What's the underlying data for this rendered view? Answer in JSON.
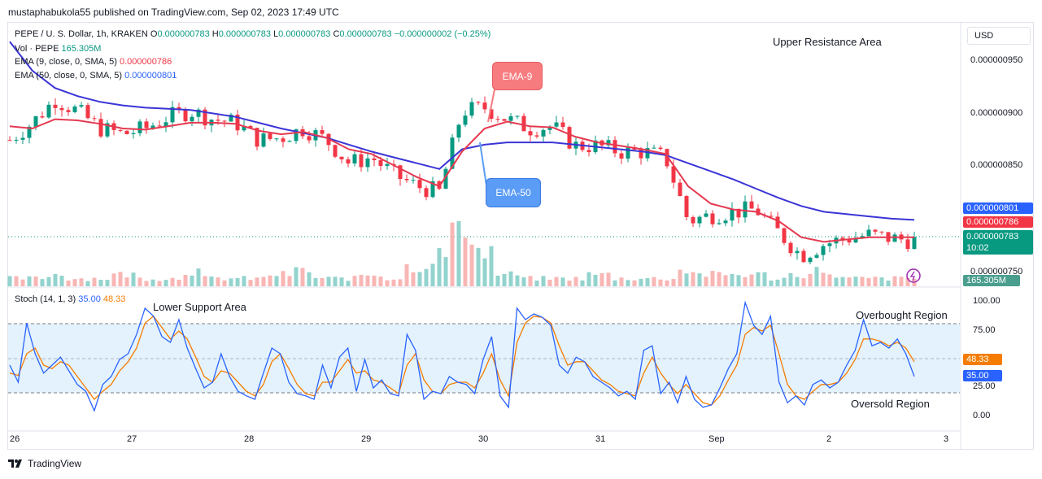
{
  "header": {
    "publisher": "mustaphabukola55 published on TradingView.com, Sep 02, 2023 17:49 UTC"
  },
  "usd_button": "USD",
  "legend": {
    "symbol": "PEPE / U. S. Dollar, 1h, KRAKEN",
    "o_label": "O",
    "o_value": "0.000000783",
    "h_label": "H",
    "h_value": "0.000000783",
    "l_label": "L",
    "l_value": "0.000000783",
    "c_label": "C",
    "c_value": "0.000000783",
    "change": "−0.000000002 (−0.25%)",
    "vol_label": "Vol · PEPE",
    "vol_value": "165.305M",
    "ema9_label": "EMA (9, close, 0, SMA, 5)",
    "ema9_value": "0.000000786",
    "ema50_label": "EMA (50, close, 0, SMA, 5)",
    "ema50_value": "0.000000801",
    "stoch_label": "Stoch (14, 1, 3)",
    "stoch_k": "35.00",
    "stoch_d": "48.33"
  },
  "annotations": {
    "upper_resistance": "Upper Resistance Area",
    "lower_support": "Lower Support Area",
    "overbought": "Overbought Region",
    "oversold": "Oversold Region",
    "ema9_callout": "EMA-9",
    "ema50_callout": "EMA-50"
  },
  "price_axis": [
    "0.000000950",
    "0.000000900",
    "0.000000850",
    "0.000000750"
  ],
  "price_tags": {
    "ema50": "0.000000801",
    "ema9": "0.000000786",
    "last": "0.000000783",
    "countdown": "10:02",
    "volume": "165.305M"
  },
  "stoch_axis": [
    "100.00",
    "75.00",
    "25.00",
    "0.00"
  ],
  "stoch_tags": {
    "d": "48.33",
    "k": "35.00"
  },
  "time_axis": [
    "26",
    "27",
    "28",
    "29",
    "30",
    "31",
    "Sep",
    "2",
    "3"
  ],
  "footer": {
    "brand": "TradingView"
  },
  "colors": {
    "up": "#089981",
    "down": "#f23645",
    "ema9": "#e53950",
    "ema50": "#3a35d6",
    "stoch_k": "#2962ff",
    "stoch_d": "#f57c00",
    "band": "#e3f2fd",
    "callout_red": "#f77c80",
    "callout_blue": "#5b9cf6"
  },
  "chart_data": [
    {
      "type": "candlestick",
      "title": "PEPE / U. S. Dollar, 1h, KRAKEN",
      "y_range": [
        7.45e-07,
        9.7e-07
      ],
      "x_ticks": [
        "26",
        "27",
        "28",
        "29",
        "30",
        "31",
        "Sep",
        "2",
        "3"
      ],
      "close_path": [
        8.7e-07,
        8.85e-07,
        9.05e-07,
        8.95e-07,
        8.8e-07,
        8.75e-07,
        8.8e-07,
        8.9e-07,
        8.95e-07,
        8.88e-07,
        8.85e-07,
        8.7e-07,
        8.72e-07,
        8.8e-07,
        8.7e-07,
        8.5e-07,
        8.55e-07,
        8.4e-07,
        8.3e-07,
        8.25e-07,
        8.95e-07,
        8.98e-07,
        8.88e-07,
        8.8e-07,
        8.82e-07,
        8.65e-07,
        8.65e-07,
        8.6e-07,
        8.6e-07,
        8.55e-07,
        8e-07,
        8.05e-07,
        8.08e-07,
        8.1e-07,
        7.9e-07,
        7.7e-07,
        7.8e-07,
        7.85e-07,
        7.88e-07,
        7.85e-07,
        7.83e-07
      ],
      "series": [
        {
          "name": "EMA (9, close, 0, SMA, 5)",
          "last": 7.86e-07,
          "values": [
            8.82e-07,
            8.8e-07,
            8.88e-07,
            8.87e-07,
            8.84e-07,
            8.8e-07,
            8.79e-07,
            8.82e-07,
            8.85e-07,
            8.85e-07,
            8.84e-07,
            8.78e-07,
            8.75e-07,
            8.77e-07,
            8.72e-07,
            8.62e-07,
            8.58e-07,
            8.48e-07,
            8.38e-07,
            8.3e-07,
            8.6e-07,
            8.8e-07,
            8.86e-07,
            8.82e-07,
            8.81e-07,
            8.73e-07,
            8.68e-07,
            8.65e-07,
            8.62e-07,
            8.58e-07,
            8.3e-07,
            8.15e-07,
            8.1e-07,
            8.08e-07,
            8e-07,
            7.86e-07,
            7.82e-07,
            7.84e-07,
            7.86e-07,
            7.86e-07,
            7.86e-07
          ]
        },
        {
          "name": "EMA (50, close, 0, SMA, 5)",
          "last": 8.01e-07,
          "values": [
            9.55e-07,
            9.3e-07,
            9.15e-07,
            9.08e-07,
            9.03e-07,
            9e-07,
            8.98e-07,
            8.97e-07,
            8.96e-07,
            8.93e-07,
            8.9e-07,
            8.85e-07,
            8.8e-07,
            8.76e-07,
            8.72e-07,
            8.66e-07,
            8.6e-07,
            8.55e-07,
            8.5e-07,
            8.45e-07,
            8.62e-07,
            8.66e-07,
            8.68e-07,
            8.68e-07,
            8.68e-07,
            8.66e-07,
            8.64e-07,
            8.62e-07,
            8.6e-07,
            8.57e-07,
            8.5e-07,
            8.43e-07,
            8.36e-07,
            8.28e-07,
            8.2e-07,
            8.13e-07,
            8.08e-07,
            8.06e-07,
            8.04e-07,
            8.02e-07,
            8.01e-07
          ]
        }
      ]
    },
    {
      "type": "line",
      "title": "Stoch (14, 1, 3)",
      "y_range": [
        0,
        100
      ],
      "levels": [
        80,
        50,
        20
      ],
      "series": [
        {
          "name": "K",
          "last": 35.0,
          "values": [
            45,
            30,
            82,
            55,
            38,
            45,
            52,
            40,
            28,
            22,
            5,
            28,
            35,
            50,
            55,
            72,
            95,
            88,
            70,
            65,
            85,
            60,
            42,
            25,
            30,
            55,
            35,
            22,
            18,
            15,
            38,
            60,
            55,
            30,
            20,
            18,
            15,
            45,
            25,
            52,
            60,
            22,
            50,
            25,
            32,
            20,
            18,
            72,
            58,
            15,
            22,
            20,
            35,
            30,
            28,
            20,
            50,
            70,
            18,
            8,
            95,
            85,
            90,
            87,
            80,
            45,
            38,
            52,
            48,
            35,
            30,
            25,
            18,
            22,
            15,
            58,
            62,
            20,
            30,
            12,
            35,
            15,
            8,
            10,
            25,
            42,
            55,
            100,
            80,
            72,
            88,
            30,
            12,
            18,
            10,
            28,
            32,
            25,
            30,
            45,
            58,
            85,
            62,
            65,
            60,
            68,
            55,
            35
          ]
        },
        {
          "name": "D",
          "last": 48.33,
          "values": [
            38,
            36,
            55,
            60,
            45,
            42,
            48,
            45,
            35,
            25,
            15,
            22,
            28,
            40,
            48,
            60,
            82,
            88,
            78,
            68,
            75,
            68,
            52,
            35,
            30,
            40,
            38,
            30,
            22,
            18,
            28,
            48,
            55,
            42,
            28,
            20,
            18,
            30,
            30,
            40,
            50,
            38,
            40,
            32,
            30,
            25,
            20,
            45,
            55,
            32,
            22,
            20,
            28,
            30,
            30,
            25,
            38,
            55,
            32,
            18,
            65,
            82,
            88,
            87,
            82,
            62,
            45,
            48,
            48,
            40,
            32,
            28,
            22,
            20,
            18,
            38,
            52,
            38,
            28,
            20,
            28,
            20,
            12,
            10,
            18,
            32,
            45,
            72,
            78,
            75,
            80,
            55,
            28,
            18,
            15,
            22,
            28,
            28,
            30,
            38,
            50,
            68,
            68,
            66,
            62,
            65,
            60,
            48
          ]
        }
      ]
    },
    {
      "type": "bar",
      "title": "Vol · PEPE",
      "last": "165.305M",
      "values": [
        2,
        2,
        3,
        2,
        2,
        3,
        2,
        2,
        4,
        2,
        2,
        2,
        3,
        4,
        2,
        2,
        3,
        2,
        5,
        8,
        15,
        9,
        3,
        2,
        2,
        2,
        3,
        2,
        2,
        2,
        4,
        3,
        3,
        3,
        2,
        3,
        4,
        2,
        2,
        2,
        2
      ]
    }
  ]
}
